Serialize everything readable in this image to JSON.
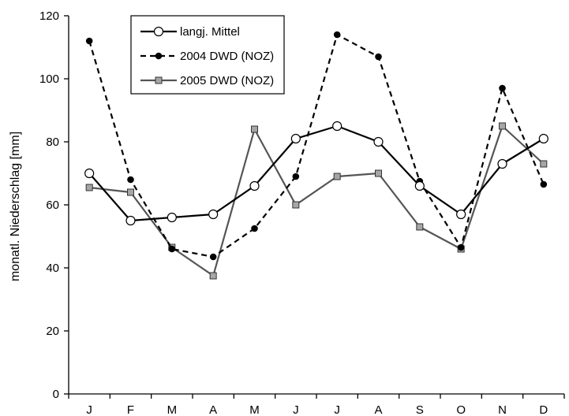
{
  "chart_data": {
    "type": "line",
    "title": "",
    "xlabel": "",
    "ylabel": "monatl. Niederschlag [mm]",
    "categories": [
      "J",
      "F",
      "M",
      "A",
      "M",
      "J",
      "J",
      "A",
      "S",
      "O",
      "N",
      "D"
    ],
    "ylim": [
      0,
      120
    ],
    "yticks": [
      0,
      20,
      40,
      60,
      80,
      100,
      120
    ],
    "grid": false,
    "legend_position": "top-center",
    "series": [
      {
        "name": "langj. Mittel",
        "values": [
          70,
          55,
          56,
          57,
          66,
          81,
          85,
          80,
          66,
          57,
          73,
          81
        ],
        "line_style": "solid",
        "line_color": "#000000",
        "marker": "circle",
        "marker_fill": "#ffffff"
      },
      {
        "name": "2004 DWD (NOZ)",
        "values": [
          112,
          68,
          46,
          43.5,
          52.5,
          69,
          114,
          107,
          67.5,
          46.5,
          97,
          66.5
        ],
        "line_style": "dashed",
        "line_color": "#000000",
        "marker": "dot",
        "marker_fill": "#000000"
      },
      {
        "name": "2005 DWD (NOZ)",
        "values": [
          65.5,
          64,
          46.5,
          37.5,
          84,
          60,
          69,
          70,
          53,
          46,
          85,
          73
        ],
        "line_style": "solid",
        "line_color": "#555555",
        "marker": "square",
        "marker_fill": "#a6a6a6"
      }
    ]
  }
}
